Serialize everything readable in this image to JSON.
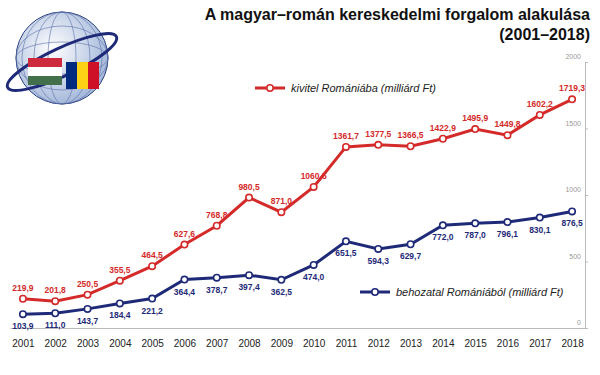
{
  "chart_data": {
    "type": "line",
    "title": "A magyar–román kereskedelmi forgalom alakulása",
    "subtitle": "(2001–2018)",
    "categories": [
      "2001",
      "2002",
      "2003",
      "2004",
      "2005",
      "2006",
      "2007",
      "2008",
      "2009",
      "2010",
      "2011",
      "2012",
      "2013",
      "2014",
      "2015",
      "2016",
      "2017",
      "2018"
    ],
    "series": [
      {
        "name": "kivitel Romániába (milliárd Ft)",
        "color": "#d42a2a",
        "marker": "circle",
        "line_style": "solid",
        "values": [
          219.9,
          201.8,
          250.5,
          355.5,
          464.5,
          627.6,
          768.8,
          980.5,
          871.0,
          1060.5,
          1361.7,
          1377.5,
          1366.5,
          1422.9,
          1495.9,
          1449.8,
          1602.2,
          1719.3
        ],
        "value_labels": [
          "219,9",
          "201,8",
          "250,5",
          "355,5",
          "464,5",
          "627,6",
          "768,8",
          "980,5",
          "871,0",
          "1060,5",
          "1361,7",
          "1377,5",
          "1366,5",
          "1422,9",
          "1495,9",
          "1449,8",
          "1602,2",
          "1719,3"
        ]
      },
      {
        "name": "behozatal Romániából (milliárd Ft)",
        "color": "#1e2a78",
        "marker": "circle",
        "line_style": "solid",
        "values": [
          103.9,
          111.0,
          143.7,
          184.4,
          221.2,
          364.4,
          378.7,
          397.4,
          362.5,
          474.0,
          651.5,
          594.3,
          629.7,
          772.0,
          787.0,
          796.1,
          830.1,
          876.5
        ],
        "value_labels": [
          "103,9",
          "111,0",
          "143,7",
          "184,4",
          "221,2",
          "364,4",
          "378,7",
          "397,4",
          "362,5",
          "474,0",
          "651,5",
          "594,3",
          "629,7",
          "772,0",
          "787,0",
          "796,1",
          "830,1",
          "876,5"
        ]
      }
    ],
    "ylim": [
      0,
      2000
    ],
    "yticks": [
      0,
      500,
      1000,
      1500,
      2000
    ],
    "grid": false,
    "data_labels": true
  }
}
